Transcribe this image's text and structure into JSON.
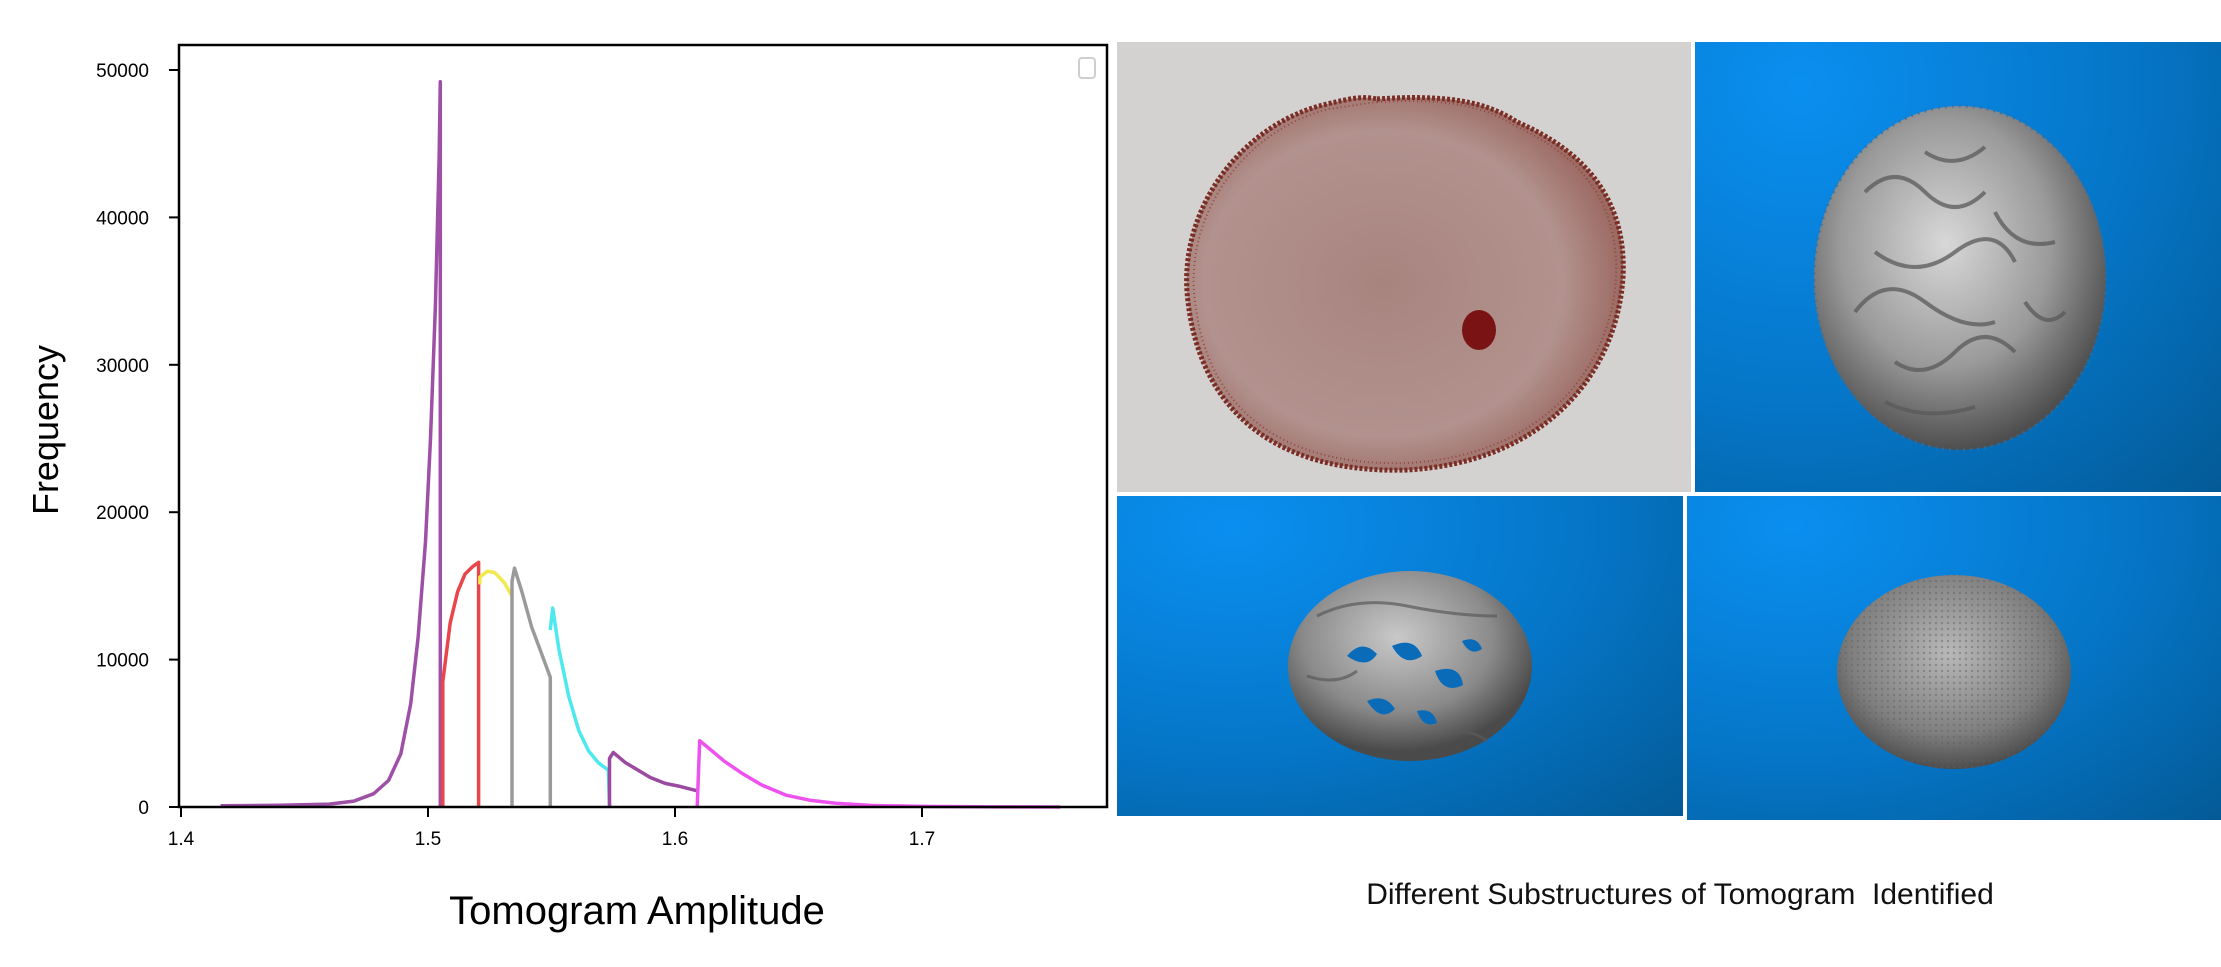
{
  "chart_data": {
    "type": "line",
    "xlabel": "Tomogram Amplitude",
    "ylabel": "Frequency",
    "xlim": [
      1.4,
      1.775
    ],
    "ylim": [
      0,
      52000
    ],
    "xticks": [
      1.4,
      1.5,
      1.6,
      1.7
    ],
    "xtick_labels": [
      "1.4",
      "1.5",
      "1.6",
      "1.7"
    ],
    "yticks": [
      0,
      10000,
      20000,
      30000,
      40000,
      50000
    ],
    "ytick_labels": [
      "0",
      "10000",
      "20000",
      "30000",
      "40000",
      "50000"
    ],
    "legend": "top-right (empty)",
    "grid": false,
    "series": [
      {
        "color": "#9e4fa6",
        "x": [
          1.416,
          1.44,
          1.46,
          1.47,
          1.478,
          1.484,
          1.489,
          1.493,
          1.496,
          1.499,
          1.501,
          1.503,
          1.5045,
          1.505,
          1.505
        ],
        "y": [
          80,
          120,
          200,
          400,
          900,
          1800,
          3600,
          7000,
          11500,
          18000,
          25000,
          34000,
          44000,
          49200,
          0
        ]
      },
      {
        "color": "#e8464a",
        "x": [
          1.506,
          1.506,
          1.509,
          1.512,
          1.515,
          1.518,
          1.5205,
          1.5205
        ],
        "y": [
          0,
          8500,
          12500,
          14600,
          15800,
          16300,
          16600,
          0
        ]
      },
      {
        "color": "#f2e94e",
        "x": [
          1.521,
          1.521,
          1.524,
          1.527,
          1.531,
          1.534
        ],
        "y": [
          15100,
          15600,
          16000,
          15900,
          15200,
          14300
        ]
      },
      {
        "color": "#9a9a9a",
        "x": [
          1.534,
          1.534,
          1.535,
          1.538,
          1.542,
          1.546,
          1.5495,
          1.5495
        ],
        "y": [
          0,
          15300,
          16200,
          14600,
          12200,
          10400,
          8800,
          0
        ]
      },
      {
        "color": "#4de9ee",
        "x": [
          1.5495,
          1.5505,
          1.553,
          1.557,
          1.561,
          1.565,
          1.569,
          1.573,
          1.5735
        ],
        "y": [
          12000,
          13500,
          10700,
          7500,
          5200,
          3800,
          3000,
          2500,
          0
        ]
      },
      {
        "color": "#9a4aa0",
        "x": [
          1.5735,
          1.5735,
          1.575,
          1.58,
          1.585,
          1.59,
          1.596,
          1.602,
          1.609
        ],
        "y": [
          0,
          3300,
          3700,
          3000,
          2500,
          2000,
          1600,
          1400,
          1100
        ]
      },
      {
        "color": "#ee52ee",
        "x": [
          1.609,
          1.61,
          1.615,
          1.62,
          1.627,
          1.635,
          1.645,
          1.655,
          1.665,
          1.68,
          1.7,
          1.73,
          1.756
        ],
        "y": [
          0,
          4500,
          3800,
          3100,
          2300,
          1500,
          800,
          450,
          250,
          100,
          40,
          10,
          0
        ]
      }
    ]
  },
  "caption": "Different Substructures of Tomogram  Identified",
  "panels": [
    {
      "type": "grey",
      "bg": "#d4d2d1"
    },
    {
      "type": "blue",
      "bg": "#0576c8"
    },
    {
      "type": "blue",
      "bg": "#0576c8"
    },
    {
      "type": "blue",
      "bg": "#0576c8"
    }
  ]
}
